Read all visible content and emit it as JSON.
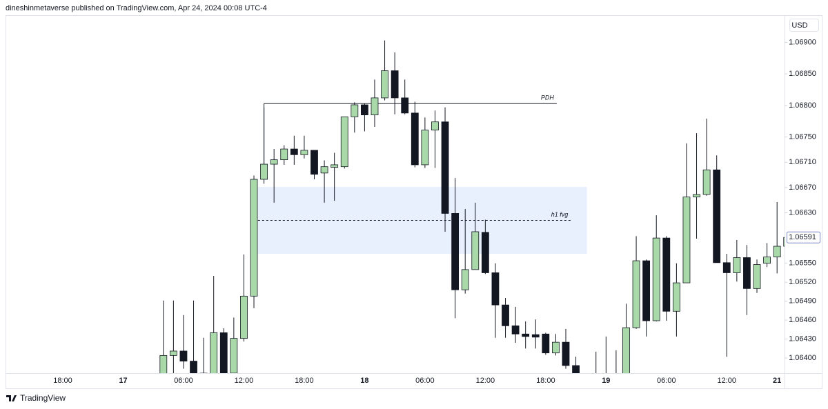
{
  "header": {
    "text": "dineshinmetaverse published on TradingView.com, Apr 24, 2024 00:08 UTC-4"
  },
  "footer": {
    "brand": "TradingView"
  },
  "chart_data": {
    "type": "candlestick",
    "currency": "USD",
    "categories": [
      "18:00",
      null,
      null,
      null,
      null,
      null,
      "17",
      null,
      null,
      null,
      null,
      null,
      "06:00",
      null,
      null,
      null,
      null,
      null,
      "12:00",
      null,
      null,
      null,
      null,
      null,
      "18:00",
      null,
      null,
      null,
      null,
      null,
      "18",
      null,
      null,
      null,
      null,
      null,
      "06:00",
      null,
      null,
      null,
      null,
      null,
      "12:00",
      null,
      null,
      null,
      null,
      null,
      "18:00",
      null,
      null,
      null,
      null,
      null,
      "19",
      null,
      null,
      null,
      null,
      null,
      "06:00",
      null,
      null,
      null,
      null,
      null,
      "12:00",
      null,
      null,
      null,
      null,
      "21",
      null
    ],
    "open": [
      null,
      null,
      null,
      null,
      null,
      null,
      null,
      null,
      null,
      null,
      1.06368,
      1.06404,
      1.06411,
      1.06395,
      1.06376,
      1.06368,
      1.0644,
      1.06376,
      1.06431,
      1.06498,
      1.06683,
      1.06707,
      1.06714,
      1.06731,
      1.06722,
      1.06729,
      1.06693,
      1.06702,
      1.06703,
      1.06782,
      1.06801,
      1.06785,
      1.06812,
      1.06855,
      1.06812,
      1.06788,
      1.06706,
      1.06761,
      1.06774,
      1.06629,
      1.06508,
      1.0654,
      1.06599,
      1.06535,
      1.06484,
      1.06451,
      1.06438,
      1.06437,
      1.06438,
      1.06408,
      1.06425,
      1.06388,
      null,
      1.06372,
      1.06368,
      1.06355,
      1.06368,
      1.06448,
      1.06554,
      1.06459,
      1.0659,
      1.06474,
      1.06519,
      1.06655,
      1.06659,
      1.06698,
      1.06551,
      1.06535,
      1.06559,
      1.0651,
      1.0655,
      1.0656,
      1.06577
    ],
    "high": [
      null,
      null,
      null,
      null,
      null,
      null,
      null,
      null,
      null,
      null,
      1.06491,
      1.06491,
      1.06468,
      1.06491,
      1.06432,
      1.0653,
      1.06447,
      1.06464,
      1.06564,
      1.06689,
      1.06797,
      1.06731,
      1.06737,
      1.06752,
      1.06752,
      1.06729,
      1.06713,
      1.06725,
      1.06782,
      1.06805,
      1.06803,
      1.06841,
      1.06903,
      1.06884,
      1.06841,
      1.06806,
      1.06781,
      1.06792,
      1.06797,
      1.06685,
      1.06636,
      1.06646,
      1.06619,
      1.0655,
      1.06495,
      1.06481,
      1.06458,
      1.06461,
      1.0644,
      1.06438,
      1.06446,
      1.06402,
      null,
      1.0641,
      1.06434,
      1.06412,
      1.06486,
      1.06593,
      1.06556,
      1.06626,
      1.06593,
      1.0655,
      1.0674,
      1.06756,
      1.06779,
      1.06721,
      1.06565,
      1.06587,
      1.06579,
      1.06556,
      1.06582,
      1.06647,
      1.06595
    ],
    "low": [
      null,
      null,
      null,
      null,
      null,
      null,
      null,
      null,
      null,
      null,
      1.06355,
      1.06376,
      1.06383,
      1.06361,
      1.06355,
      1.06361,
      1.06368,
      1.06372,
      1.06426,
      1.06479,
      1.06676,
      1.06646,
      1.06706,
      1.06706,
      1.06716,
      1.06683,
      1.06646,
      1.06649,
      1.067,
      1.06757,
      1.06759,
      1.06766,
      1.06808,
      1.06786,
      1.06786,
      1.06702,
      1.06701,
      1.06701,
      1.066,
      1.06463,
      1.06502,
      1.0654,
      1.06533,
      1.06432,
      1.06432,
      1.06424,
      1.06415,
      1.06415,
      1.06405,
      1.06404,
      1.06383,
      1.06355,
      null,
      1.0635,
      1.06344,
      1.06344,
      1.06361,
      1.06446,
      1.06434,
      1.06458,
      1.06459,
      1.06434,
      1.06519,
      1.06589,
      1.06657,
      1.06551,
      1.06402,
      1.06521,
      1.06468,
      1.06503,
      1.06544,
      1.06534,
      1.06574
    ],
    "close": [
      null,
      null,
      null,
      null,
      null,
      null,
      null,
      null,
      null,
      null,
      1.06404,
      1.06411,
      1.06395,
      1.06368,
      1.06366,
      1.0644,
      1.06376,
      1.06431,
      1.06498,
      1.06683,
      1.06707,
      1.06714,
      1.06731,
      1.06722,
      1.06729,
      1.06691,
      1.06703,
      1.06706,
      1.06782,
      1.06801,
      1.06785,
      1.06812,
      1.06855,
      1.06812,
      1.06788,
      1.06706,
      1.06761,
      1.06774,
      1.06629,
      1.06508,
      1.0654,
      1.066,
      1.06535,
      1.06484,
      1.06451,
      1.06438,
      1.06434,
      1.06433,
      1.06408,
      1.06425,
      1.06388,
      1.06368,
      null,
      1.06361,
      1.06357,
      1.06368,
      1.06448,
      1.06554,
      1.06459,
      1.0659,
      1.06474,
      1.06519,
      1.06655,
      1.06659,
      1.06698,
      1.06551,
      1.06535,
      1.06559,
      1.0651,
      1.06548,
      1.0656,
      1.06577,
      1.06591
    ],
    "up_color": "#a9d9a9",
    "down_color": "#131722",
    "wick_color": "#131722",
    "ylim": [
      1.06376,
      1.06943
    ],
    "yticks": [
      {
        "value": 1.069,
        "label": "1.06900"
      },
      {
        "value": 1.0685,
        "label": "1.06850"
      },
      {
        "value": 1.068,
        "label": "1.06800"
      },
      {
        "value": 1.0675,
        "label": "1.06750"
      },
      {
        "value": 1.0671,
        "label": "1.06710"
      },
      {
        "value": 1.0667,
        "label": "1.06670"
      },
      {
        "value": 1.0663,
        "label": "1.06630"
      },
      {
        "value": 1.0655,
        "label": "1.06550"
      },
      {
        "value": 1.0652,
        "label": "1.06520"
      },
      {
        "value": 1.0649,
        "label": "1.06490"
      },
      {
        "value": 1.0646,
        "label": "1.06460"
      },
      {
        "value": 1.0643,
        "label": "1.06430"
      },
      {
        "value": 1.064,
        "label": "1.06400"
      }
    ],
    "last_price": {
      "value": 1.06591,
      "label": "1.06591"
    },
    "grid": false,
    "zone": {
      "low": 1.06565,
      "high": 1.06671,
      "color": "#e8f0fd"
    },
    "annotations": [
      {
        "text": "PDH",
        "value": 1.06803
      },
      {
        "text": "h1 fvg",
        "value": 1.06618
      }
    ]
  }
}
